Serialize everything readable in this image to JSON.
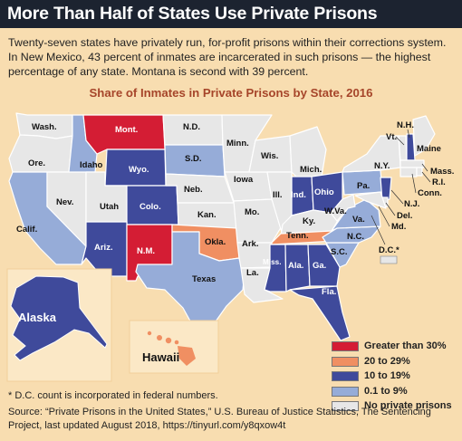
{
  "header": {
    "title": "More Than Half of States Use Private Prisons",
    "intro": "Twenty-seven states have privately run, for-profit prisons within their corrections system. In New Mexico, 43 percent of inmates are incarcerated in such prisons — the highest percentage of any state. Montana is second with 39 percent."
  },
  "map": {
    "title": "Share of Inmates in Private Prisons by State, 2016",
    "colors": {
      "background": "#f8ddb0",
      "greater_than_30": "#d41d34",
      "20_to_29": "#f08f62",
      "10_to_19": "#3f4a9b",
      "0_1_to_9": "#96acd8",
      "none": "#e7e7e7",
      "border": "#ffffff"
    },
    "states": {
      "wash": "Wash.",
      "ore": "Ore.",
      "calif": "Calif.",
      "nev": "Nev.",
      "idaho": "Idaho",
      "mont": "Mont.",
      "wyo": "Wyo.",
      "utah": "Utah",
      "colo": "Colo.",
      "ariz": "Ariz.",
      "nm": "N.M.",
      "nd": "N.D.",
      "sd": "S.D.",
      "neb": "Neb.",
      "kan": "Kan.",
      "okla": "Okla.",
      "texas": "Texas",
      "minn": "Minn.",
      "iowa": "Iowa",
      "mo": "Mo.",
      "ark": "Ark.",
      "la": "La.",
      "wis": "Wis.",
      "ill": "Ill.",
      "mich": "Mich.",
      "ind": "Ind.",
      "ohio": "Ohio",
      "ky": "Ky.",
      "tenn": "Tenn.",
      "miss": "Miss.",
      "ala": "Ala.",
      "ga": "Ga.",
      "fla": "Fla.",
      "sc": "S.C.",
      "nc": "N.C.",
      "va": "Va.",
      "wva": "W.Va.",
      "pa": "Pa.",
      "ny": "N.Y.",
      "vt": "Vt.",
      "nh": "N.H.",
      "maine": "Maine",
      "mass": "Mass.",
      "ri": "R.I.",
      "conn": "Conn.",
      "nj": "N.J.",
      "del": "Del.",
      "md": "Md.",
      "dc": "D.C.*",
      "alaska": "Alaska",
      "hawaii": "Hawaii"
    },
    "legend": [
      {
        "label": "Greater than 30%",
        "color": "#d41d34"
      },
      {
        "label": "20 to 29%",
        "color": "#f08f62"
      },
      {
        "label": "10 to 19%",
        "color": "#3f4a9b"
      },
      {
        "label": "0.1 to 9%",
        "color": "#96acd8"
      },
      {
        "label": "No private prisons",
        "color": "#e7e7e7"
      }
    ]
  },
  "footer": {
    "footnote": "* D.C. count is incorporated in federal numbers.",
    "source": "Source: “Private Prisons in the United States,” U.S. Bureau of Justice Statistics, The Sentencing Project, last updated August 2018, https://tinyurl.com/y8qxow4t"
  }
}
